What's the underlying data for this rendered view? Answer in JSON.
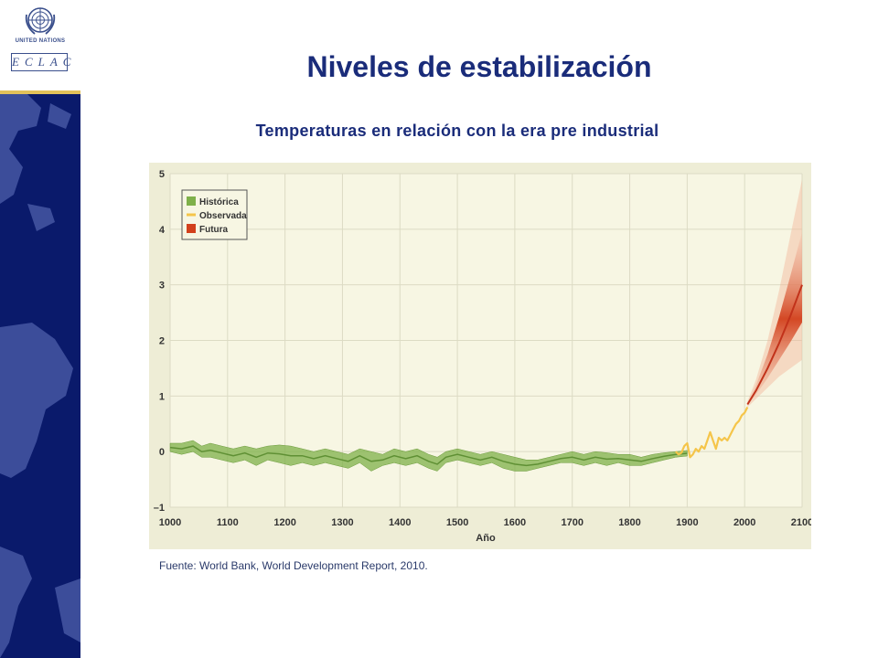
{
  "slide": {
    "title": "Niveles de estabilización",
    "subtitle": "Temperaturas en relación con la era pre industrial",
    "source": "Fuente: World Bank, World Development Report, 2010."
  },
  "logo": {
    "org_name": "United Nations",
    "acronym": "ECLAC"
  },
  "colors": {
    "sidebar": "#0a1a6b",
    "map": "#3c4d9a",
    "title": "#1a2c7a",
    "plot_bg": "#f7f6e3",
    "outer_bg": "#eeedd6",
    "historic": "#7fb04a",
    "observed": "#f5c54a",
    "future": "#d2401c"
  },
  "chart_data": {
    "type": "line",
    "xlabel": "Año",
    "ylabel": "",
    "xlim": [
      1000,
      2100
    ],
    "ylim": [
      -1,
      5
    ],
    "x_ticks": [
      1000,
      1100,
      1200,
      1300,
      1400,
      1500,
      1600,
      1700,
      1800,
      1900,
      2000,
      2100
    ],
    "y_ticks": [
      -1,
      0,
      1,
      2,
      3,
      4,
      5
    ],
    "y_tick_labels": [
      "–1",
      "0",
      "1",
      "2",
      "3",
      "4",
      "5"
    ],
    "grid": true,
    "legend_position": "top-left",
    "legend": [
      "Histórica",
      "Observada",
      "Futura"
    ],
    "series": [
      {
        "name": "Histórica",
        "kind": "band",
        "x": [
          1000,
          1020,
          1040,
          1055,
          1070,
          1090,
          1110,
          1130,
          1150,
          1170,
          1190,
          1210,
          1230,
          1250,
          1270,
          1290,
          1310,
          1330,
          1350,
          1370,
          1390,
          1410,
          1430,
          1450,
          1465,
          1480,
          1500,
          1520,
          1540,
          1560,
          1580,
          1600,
          1620,
          1640,
          1660,
          1680,
          1700,
          1720,
          1740,
          1760,
          1780,
          1800,
          1820,
          1840,
          1860,
          1880,
          1900
        ],
        "upper": [
          0.15,
          0.15,
          0.2,
          0.1,
          0.15,
          0.1,
          0.05,
          0.1,
          0.05,
          0.1,
          0.12,
          0.1,
          0.05,
          0.0,
          0.05,
          0.0,
          -0.05,
          0.05,
          0.0,
          -0.05,
          0.05,
          0.0,
          0.05,
          -0.05,
          -0.1,
          0.0,
          0.05,
          0.0,
          -0.05,
          0.0,
          -0.05,
          -0.1,
          -0.15,
          -0.15,
          -0.1,
          -0.05,
          0.0,
          -0.05,
          0.0,
          -0.02,
          -0.05,
          -0.05,
          -0.1,
          -0.05,
          -0.02,
          0.0,
          0.02
        ],
        "lower": [
          0.0,
          -0.05,
          0.0,
          -0.1,
          -0.1,
          -0.15,
          -0.2,
          -0.15,
          -0.25,
          -0.15,
          -0.2,
          -0.25,
          -0.2,
          -0.25,
          -0.2,
          -0.25,
          -0.3,
          -0.2,
          -0.35,
          -0.25,
          -0.2,
          -0.25,
          -0.2,
          -0.3,
          -0.35,
          -0.2,
          -0.15,
          -0.2,
          -0.25,
          -0.2,
          -0.3,
          -0.35,
          -0.35,
          -0.3,
          -0.25,
          -0.2,
          -0.2,
          -0.25,
          -0.2,
          -0.25,
          -0.2,
          -0.25,
          -0.25,
          -0.2,
          -0.15,
          -0.1,
          -0.08
        ]
      },
      {
        "name": "Observada",
        "kind": "line",
        "x": [
          1880,
          1885,
          1890,
          1895,
          1900,
          1905,
          1910,
          1915,
          1920,
          1925,
          1930,
          1935,
          1940,
          1945,
          1950,
          1955,
          1960,
          1965,
          1970,
          1975,
          1980,
          1985,
          1990,
          1995,
          2000,
          2005
        ],
        "y": [
          0.0,
          -0.05,
          -0.02,
          0.1,
          0.15,
          -0.1,
          -0.05,
          0.05,
          0.0,
          0.1,
          0.05,
          0.2,
          0.35,
          0.2,
          0.05,
          0.25,
          0.2,
          0.25,
          0.2,
          0.3,
          0.4,
          0.5,
          0.55,
          0.65,
          0.7,
          0.8
        ]
      },
      {
        "name": "Futura",
        "kind": "fan",
        "x": [
          2005,
          2020,
          2040,
          2060,
          2080,
          2100
        ],
        "center": [
          0.85,
          1.1,
          1.5,
          1.95,
          2.45,
          3.0
        ],
        "low": [
          0.8,
          0.95,
          1.15,
          1.35,
          1.5,
          1.65
        ],
        "high": [
          0.9,
          1.3,
          2.0,
          2.9,
          3.9,
          4.9
        ]
      }
    ]
  }
}
